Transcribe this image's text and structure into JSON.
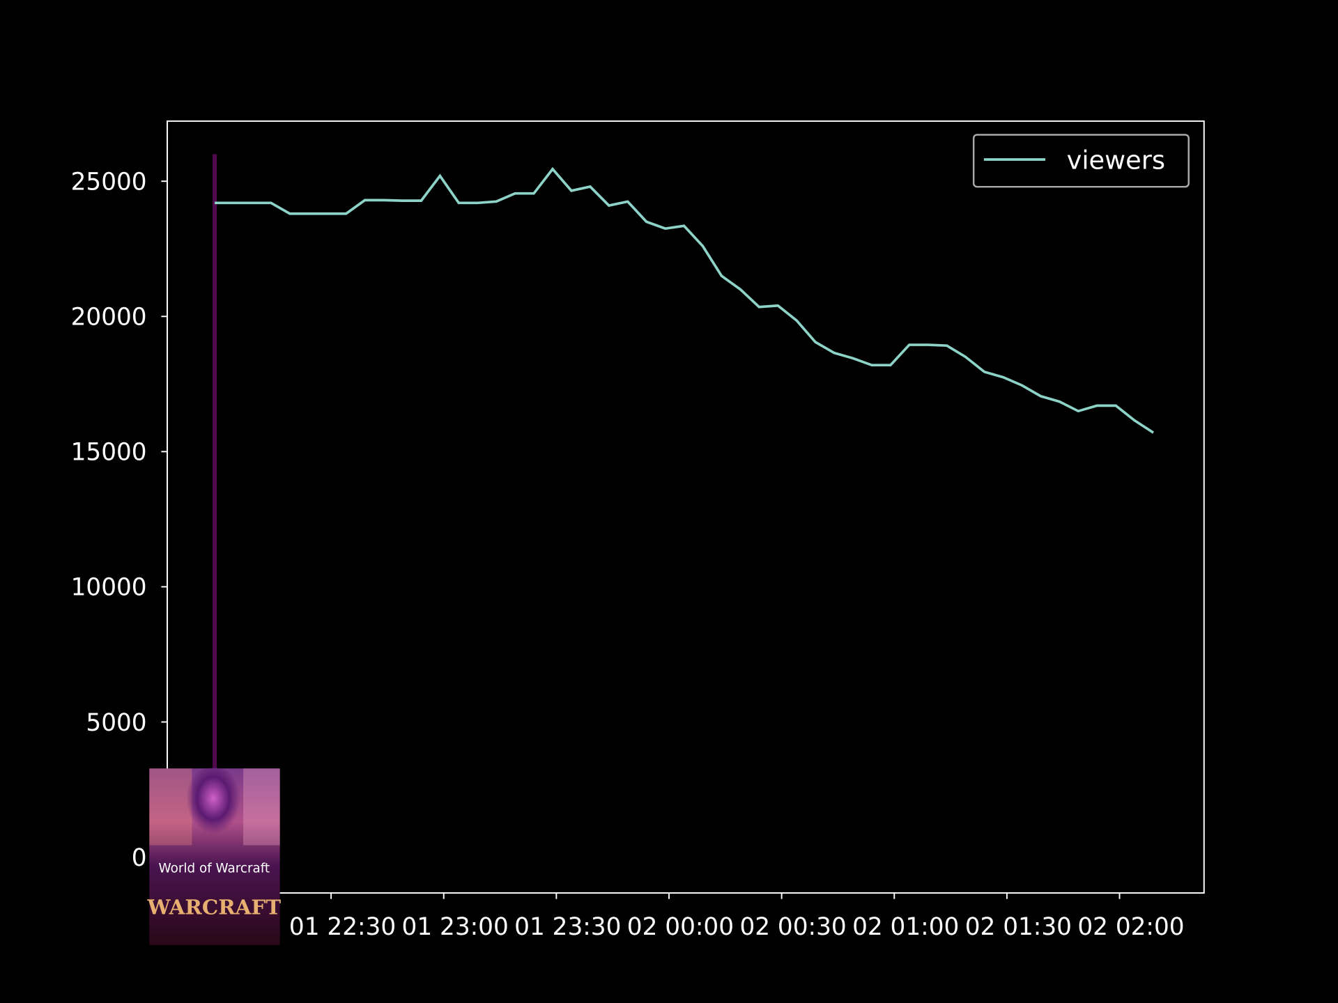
{
  "chart_data": {
    "type": "line",
    "title": "",
    "xlabel": "",
    "ylabel": "",
    "ylim": [
      0,
      27000
    ],
    "yticks": [
      "0",
      "5000",
      "10000",
      "15000",
      "20000",
      "25000"
    ],
    "ytick_values": [
      0,
      5000,
      10000,
      15000,
      20000,
      25000
    ],
    "xticks": [
      "01 22:30",
      "01 23:00",
      "01 23:30",
      "02 00:00",
      "02 00:30",
      "02 01:00",
      "02 01:30",
      "02 02:00"
    ],
    "xtick_values": [
      "22:30",
      "23:00",
      "23:30",
      "00:00",
      "00:30",
      "01:00",
      "01:30",
      "02:00"
    ],
    "legend_position": "top-right",
    "grid": false,
    "background": "#000000",
    "series": [
      {
        "name": "viewers",
        "color": "#8dd3c7",
        "x": [
          "21:59",
          "22:04",
          "22:09",
          "22:14",
          "22:19",
          "22:24",
          "22:29",
          "22:34",
          "22:39",
          "22:44",
          "22:49",
          "22:54",
          "22:59",
          "23:04",
          "23:09",
          "23:14",
          "23:19",
          "23:24",
          "23:29",
          "23:34",
          "23:39",
          "23:44",
          "23:49",
          "23:54",
          "23:59",
          "00:04",
          "00:09",
          "00:14",
          "00:19",
          "00:24",
          "00:29",
          "00:34",
          "00:39",
          "00:44",
          "00:49",
          "00:54",
          "00:59",
          "01:04",
          "01:09",
          "01:14",
          "01:19",
          "01:24",
          "01:29",
          "01:34",
          "01:39",
          "01:44",
          "01:49",
          "01:54",
          "01:59",
          "02:04",
          "02:09"
        ],
        "values": [
          24200,
          24200,
          24200,
          24200,
          23800,
          23800,
          23800,
          23800,
          24300,
          24300,
          24280,
          24280,
          25200,
          24200,
          24200,
          24250,
          24550,
          24550,
          25450,
          24650,
          24800,
          24100,
          24250,
          23500,
          23250,
          23350,
          22600,
          21500,
          21000,
          20350,
          20400,
          19850,
          19050,
          18650,
          18450,
          18200,
          18200,
          18950,
          18950,
          18920,
          18500,
          17950,
          17750,
          17450,
          17050,
          16850,
          16500,
          16700,
          16700,
          16150,
          15700
        ]
      }
    ],
    "annotation": {
      "marker_time": "21:59",
      "marker_top_value": 26000,
      "marker_color": "#5a0a55",
      "image_label": "World of Warcraft",
      "image_logo_text": "WARCRAFT"
    }
  }
}
